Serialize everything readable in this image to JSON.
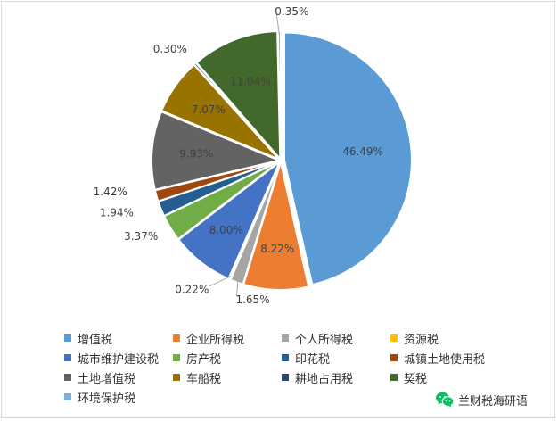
{
  "chart_data": {
    "type": "pie",
    "title": "",
    "start_angle_deg": 0,
    "slices": [
      {
        "name": "增值税",
        "value": 46.49,
        "label": "46.49%",
        "color": "#5B9BD5"
      },
      {
        "name": "企业所得税",
        "value": 8.22,
        "label": "8.22%",
        "color": "#ED7D31"
      },
      {
        "name": "个人所得税",
        "value": 1.65,
        "label": "1.65%",
        "color": "#A5A5A5"
      },
      {
        "name": "资源税",
        "value": 0.22,
        "label": "0.22%",
        "color": "#FFC000"
      },
      {
        "name": "城市维护建设税",
        "value": 8.0,
        "label": "8.00%",
        "color": "#4472C4"
      },
      {
        "name": "房产税",
        "value": 3.37,
        "label": "3.37%",
        "color": "#70AD47"
      },
      {
        "name": "印花税",
        "value": 1.94,
        "label": "1.94%",
        "color": "#255E91"
      },
      {
        "name": "城镇土地使用税",
        "value": 1.42,
        "label": "1.42%",
        "color": "#9E480E"
      },
      {
        "name": "土地增值税",
        "value": 9.93,
        "label": "9.93%",
        "color": "#636363"
      },
      {
        "name": "车船税",
        "value": 7.07,
        "label": "7.07%",
        "color": "#997300"
      },
      {
        "name": "耕地占用税",
        "value": 0.3,
        "label": "0.30%",
        "color": "#264478"
      },
      {
        "name": "契税",
        "value": 11.04,
        "label": "11.04%",
        "color": "#43682B"
      },
      {
        "name": "环境保护税",
        "value": 0.35,
        "label": "0.35%",
        "color": "#7CAFDD"
      }
    ],
    "legend_position": "bottom"
  },
  "watermark": {
    "icon": "wechat-icon",
    "text": "兰财税海研语"
  }
}
